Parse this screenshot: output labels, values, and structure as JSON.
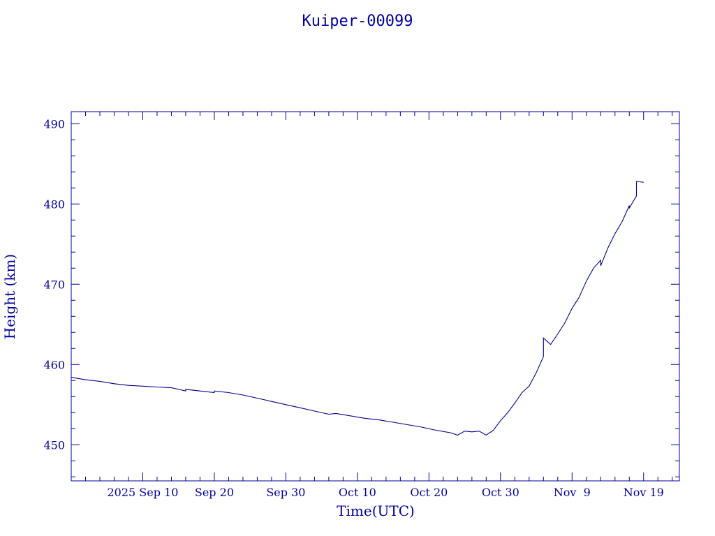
{
  "chart_data": {
    "type": "line",
    "title": "Kuiper-00099",
    "xlabel": "Time(UTC)",
    "ylabel": "Height (km)",
    "x_start": "2025-08-31",
    "xlim": [
      "2025-08-31",
      "2025-11-24"
    ],
    "ylim": [
      445.5,
      491.5
    ],
    "yticks": [
      450,
      460,
      470,
      480,
      490
    ],
    "xticks": [
      {
        "date": "2025-09-10",
        "label": "2025 Sep 10"
      },
      {
        "date": "2025-09-20",
        "label": "Sep 20"
      },
      {
        "date": "2025-09-30",
        "label": "Sep 30"
      },
      {
        "date": "2025-10-10",
        "label": "Oct 10"
      },
      {
        "date": "2025-10-20",
        "label": "Oct 20"
      },
      {
        "date": "2025-10-30",
        "label": "Oct 30"
      },
      {
        "date": "2025-11-09",
        "label": "Nov  9"
      },
      {
        "date": "2025-11-19",
        "label": "Nov 19"
      }
    ],
    "grid": false,
    "series": [
      {
        "color": "#00008b",
        "points": [
          [
            "2025-08-31",
            458.4
          ],
          [
            "2025-09-02",
            458.1
          ],
          [
            "2025-09-04",
            457.9
          ],
          [
            "2025-09-06",
            457.6
          ],
          [
            "2025-09-08",
            457.4
          ],
          [
            "2025-09-10",
            457.3
          ],
          [
            "2025-09-12",
            457.2
          ],
          [
            "2025-09-14",
            457.1
          ],
          [
            "2025-09-15",
            456.9
          ],
          [
            "2025-09-16",
            456.7
          ],
          [
            "2025-09-16",
            456.9
          ],
          [
            "2025-09-18",
            456.7
          ],
          [
            "2025-09-20",
            456.5
          ],
          [
            "2025-09-20",
            456.7
          ],
          [
            "2025-09-22",
            456.5
          ],
          [
            "2025-09-24",
            456.2
          ],
          [
            "2025-09-26",
            455.8
          ],
          [
            "2025-09-28",
            455.4
          ],
          [
            "2025-09-30",
            455.0
          ],
          [
            "2025-10-02",
            454.6
          ],
          [
            "2025-10-04",
            454.2
          ],
          [
            "2025-10-06",
            453.8
          ],
          [
            "2025-10-07",
            453.9
          ],
          [
            "2025-10-09",
            453.6
          ],
          [
            "2025-10-11",
            453.3
          ],
          [
            "2025-10-13",
            453.1
          ],
          [
            "2025-10-15",
            452.8
          ],
          [
            "2025-10-17",
            452.5
          ],
          [
            "2025-10-19",
            452.2
          ],
          [
            "2025-10-21",
            451.8
          ],
          [
            "2025-10-23",
            451.5
          ],
          [
            "2025-10-24",
            451.2
          ],
          [
            "2025-10-25",
            451.7
          ],
          [
            "2025-10-26",
            451.6
          ],
          [
            "2025-10-27",
            451.7
          ],
          [
            "2025-10-28",
            451.2
          ],
          [
            "2025-10-29",
            451.8
          ],
          [
            "2025-10-30",
            453.0
          ],
          [
            "2025-10-31",
            454.0
          ],
          [
            "2025-11-01",
            455.2
          ],
          [
            "2025-11-02",
            456.5
          ],
          [
            "2025-11-03",
            457.3
          ],
          [
            "2025-11-04",
            459.0
          ],
          [
            "2025-11-05",
            461.0
          ],
          [
            "2025-11-05",
            463.3
          ],
          [
            "2025-11-06",
            462.5
          ],
          [
            "2025-11-07",
            463.8
          ],
          [
            "2025-11-08",
            465.2
          ],
          [
            "2025-11-09",
            467.0
          ],
          [
            "2025-11-10",
            468.4
          ],
          [
            "2025-11-11",
            470.4
          ],
          [
            "2025-11-12",
            472.0
          ],
          [
            "2025-11-13",
            473.0
          ],
          [
            "2025-11-13",
            472.3
          ],
          [
            "2025-11-14",
            474.5
          ],
          [
            "2025-11-15",
            476.3
          ],
          [
            "2025-11-16",
            477.8
          ],
          [
            "2025-11-17",
            479.8
          ],
          [
            "2025-11-17",
            479.5
          ],
          [
            "2025-11-18",
            481.0
          ],
          [
            "2025-11-18",
            482.8
          ],
          [
            "2025-11-19",
            482.7
          ]
        ]
      }
    ]
  }
}
